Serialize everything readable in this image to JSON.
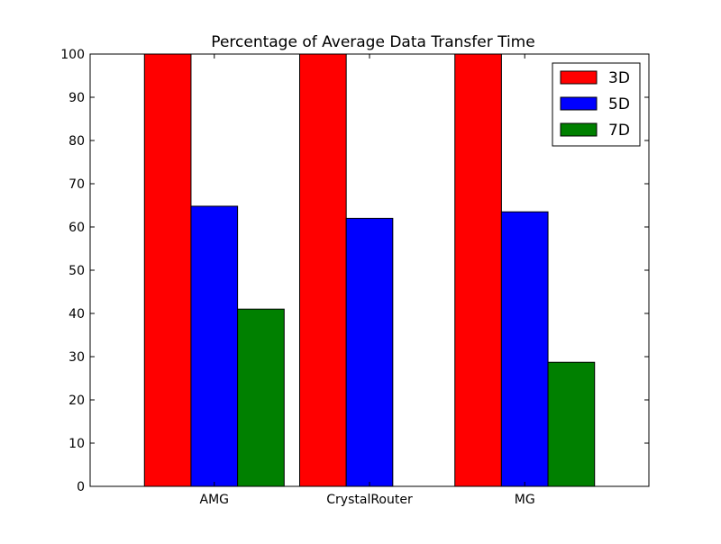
{
  "chart_data": {
    "type": "bar",
    "title": "Percentage of Average Data Transfer Time",
    "xlabel": "",
    "ylabel": "",
    "categories": [
      "AMG",
      "CrystalRouter",
      "MG"
    ],
    "series": [
      {
        "name": "3D",
        "color": "#ff0000",
        "values": [
          100,
          100,
          100
        ]
      },
      {
        "name": "5D",
        "color": "#0000ff",
        "values": [
          64.8,
          62.0,
          63.5
        ]
      },
      {
        "name": "7D",
        "color": "#008000",
        "values": [
          41.0,
          0,
          28.7
        ]
      }
    ],
    "ylim": [
      0,
      100
    ],
    "yticks": [
      0,
      10,
      20,
      30,
      40,
      50,
      60,
      70,
      80,
      90,
      100
    ],
    "grid": false,
    "legend_position": "top-right"
  }
}
